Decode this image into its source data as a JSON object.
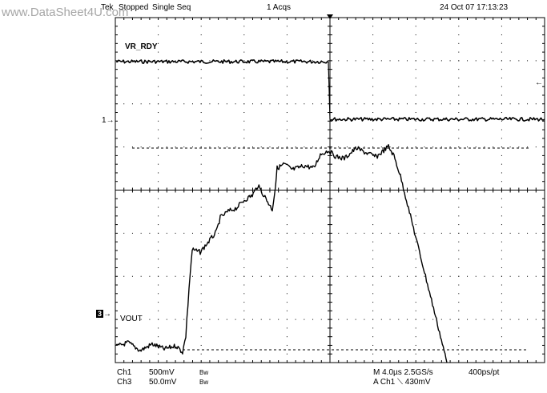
{
  "watermark": "www.DataSheet4U.com",
  "header": {
    "brand": "Tek",
    "run_state": "Stopped",
    "mode": "Single Seq",
    "acqs": "1 Acqs",
    "datetime": "24 Oct 07 17:13:23"
  },
  "waveforms": {
    "ch1_label": "VR_RDY",
    "ch3_label": "VOUT",
    "ch1_marker": "1",
    "ch3_marker": "3",
    "ch1_marker_glyph": "→",
    "ch3_marker_glyph": "→",
    "right_arrow": "←"
  },
  "footer": {
    "ch1_name": "Ch1",
    "ch1_scale": "500mV",
    "ch1_bw": "Bw",
    "ch3_name": "Ch3",
    "ch3_scale": "50.0mV",
    "ch3_bw": "Bw",
    "timebase": "M 4.0µs 2.5GS/s",
    "record": "400ps/pt",
    "trigger": "A Ch1 ⟍ 430mV"
  },
  "colors": {
    "trace": "#000000",
    "grid": "#000000",
    "watermark": "#a6a6a6"
  }
}
